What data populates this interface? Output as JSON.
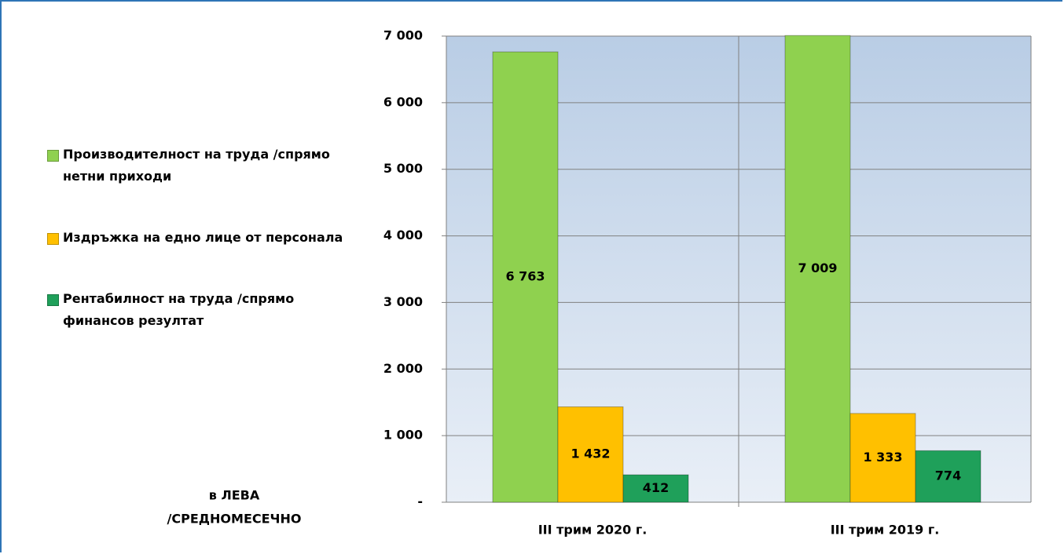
{
  "chart_data": {
    "type": "bar",
    "categories": [
      "III трим 2020 г.",
      "III трим 2019 г."
    ],
    "series": [
      {
        "name": "Производителност на труда /спрямо нетни приходи",
        "color": "#8fd14f",
        "values": [
          6763,
          7009
        ],
        "value_labels": [
          "6 763",
          "7 009"
        ]
      },
      {
        "name": "Издръжка на едно лице от персонала",
        "color": "#ffc000",
        "values": [
          1432,
          1333
        ],
        "value_labels": [
          "1 432",
          "1 333"
        ]
      },
      {
        "name": "Рентабилност на труда /спрямо финансов резултат",
        "color": "#1fa05a",
        "values": [
          412,
          774
        ],
        "value_labels": [
          "412",
          "774"
        ]
      }
    ],
    "ylim": [
      0,
      7000
    ],
    "yticks": [
      {
        "value": 0,
        "label": "-"
      },
      {
        "value": 1000,
        "label": "1 000"
      },
      {
        "value": 2000,
        "label": "2 000"
      },
      {
        "value": 3000,
        "label": "3 000"
      },
      {
        "value": 4000,
        "label": "4 000"
      },
      {
        "value": 5000,
        "label": "5 000"
      },
      {
        "value": 6000,
        "label": "6 000"
      },
      {
        "value": 7000,
        "label": "7 000"
      }
    ],
    "grid": true,
    "legend": "left",
    "annotation": [
      "в ЛЕВА",
      "/СРЕДНОМЕСЕЧНО"
    ]
  }
}
